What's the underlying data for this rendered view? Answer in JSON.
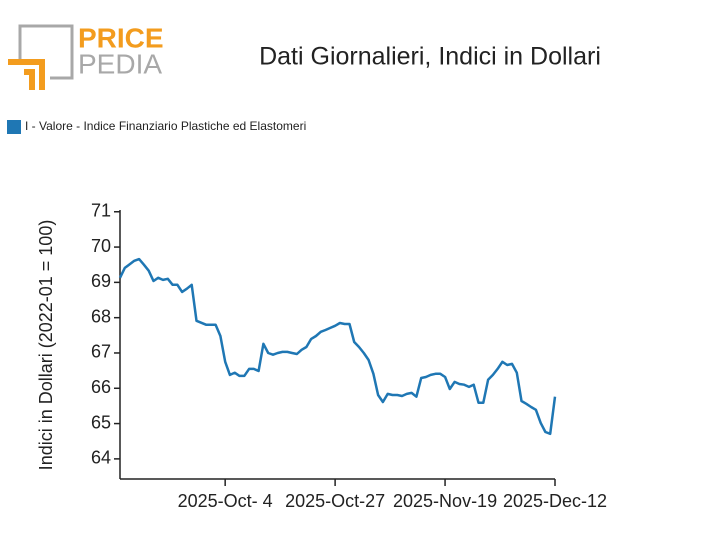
{
  "logo": {
    "line1": "PRICE",
    "line2": "PEDIA"
  },
  "chart_data": {
    "type": "line",
    "title": "Dati Giornalieri, Indici in Dollari",
    "y_label": "Indici in Dollari (2022-01 = 100)",
    "legend": "top-left",
    "x": [
      "2025-09-12",
      "2025-09-13",
      "2025-09-15",
      "2025-09-16",
      "2025-09-17",
      "2025-09-18",
      "2025-09-19",
      "2025-09-20",
      "2025-09-21",
      "2025-09-22",
      "2025-09-23",
      "2025-09-24",
      "2025-09-25",
      "2025-09-26",
      "2025-09-27",
      "2025-09-28",
      "2025-09-30",
      "2025-10-01",
      "2025-10-02",
      "2025-10-03",
      "2025-10-04",
      "2025-10-05",
      "2025-10-06",
      "2025-10-07",
      "2025-10-08",
      "2025-10-09",
      "2025-10-10",
      "2025-10-11",
      "2025-10-12",
      "2025-10-13",
      "2025-10-14",
      "2025-10-15",
      "2025-10-16",
      "2025-10-17",
      "2025-10-18",
      "2025-10-19",
      "2025-10-20",
      "2025-10-21",
      "2025-10-22",
      "2025-10-23",
      "2025-10-24",
      "2025-10-25",
      "2025-10-26",
      "2025-10-27",
      "2025-10-28",
      "2025-10-29",
      "2025-10-30",
      "2025-10-31",
      "2025-11-01",
      "2025-11-02",
      "2025-11-03",
      "2025-11-04",
      "2025-11-05",
      "2025-11-06",
      "2025-11-07",
      "2025-11-08",
      "2025-11-09",
      "2025-11-10",
      "2025-11-11",
      "2025-11-12",
      "2025-11-13",
      "2025-11-14",
      "2025-11-15",
      "2025-11-16",
      "2025-11-17",
      "2025-11-18",
      "2025-11-19",
      "2025-11-20",
      "2025-11-21",
      "2025-11-22",
      "2025-11-23",
      "2025-11-24",
      "2025-11-25",
      "2025-11-26",
      "2025-11-27",
      "2025-11-28",
      "2025-11-29",
      "2025-11-30",
      "2025-12-01",
      "2025-12-02",
      "2025-12-03",
      "2025-12-04",
      "2025-12-05",
      "2025-12-06",
      "2025-12-07",
      "2025-12-08",
      "2025-12-09",
      "2025-12-10",
      "2025-12-11",
      "2025-12-12"
    ],
    "series": [
      {
        "name": "I - Valore - Indice Finanziario Plastiche ed Elastomeri",
        "color": "#1f77b4",
        "values": [
          69.13,
          69.41,
          69.61,
          69.66,
          69.5,
          69.33,
          69.04,
          69.13,
          69.07,
          69.1,
          68.93,
          68.93,
          68.73,
          68.82,
          68.93,
          67.91,
          67.8,
          67.8,
          67.8,
          67.48,
          66.75,
          66.38,
          66.44,
          66.35,
          66.35,
          66.55,
          66.55,
          66.49,
          67.26,
          67.0,
          66.95,
          67.0,
          67.03,
          67.03,
          67.0,
          66.97,
          67.09,
          67.17,
          67.4,
          67.48,
          67.6,
          67.65,
          67.71,
          67.77,
          67.85,
          67.82,
          67.82,
          67.31,
          67.17,
          67.0,
          66.8,
          66.41,
          65.81,
          65.61,
          65.84,
          65.81,
          65.81,
          65.78,
          65.84,
          65.87,
          65.76,
          66.29,
          66.32,
          66.38,
          66.41,
          66.41,
          66.32,
          65.98,
          66.18,
          66.12,
          66.1,
          66.04,
          66.1,
          65.59,
          65.59,
          66.24,
          66.38,
          66.55,
          66.75,
          66.66,
          66.69,
          66.44,
          65.64,
          65.56,
          65.47,
          65.39,
          65.02,
          64.76,
          64.71,
          65.76
        ]
      }
    ],
    "xlim": [
      "2025-09-12",
      "2025-12-12"
    ],
    "xticks": [
      {
        "value": "2025-10-04",
        "label": "2025-Oct- 4"
      },
      {
        "value": "2025-10-27",
        "label": "2025-Oct-27"
      },
      {
        "value": "2025-11-19",
        "label": "2025-Nov-19"
      },
      {
        "value": "2025-12-12",
        "label": "2025-Dec-12"
      }
    ],
    "ylim": [
      63.43,
      71.05
    ],
    "yticks": [
      64,
      65,
      66,
      67,
      68,
      69,
      70,
      71
    ]
  }
}
